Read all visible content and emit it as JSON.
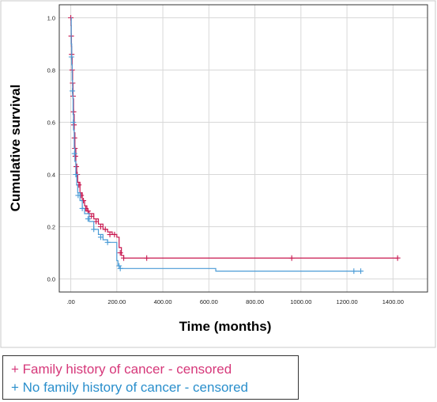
{
  "chart_data": {
    "type": "line",
    "title": "",
    "xlabel": "Time (months)",
    "ylabel": "Cumulative survival",
    "xlim": [
      -50,
      1550
    ],
    "ylim": [
      -0.05,
      1.05
    ],
    "xticks": [
      ".00",
      "200.00",
      "400.00",
      "600.00",
      "800.00",
      "1000.00",
      "1200.00",
      "1400.00"
    ],
    "xtick_values": [
      0,
      200,
      400,
      600,
      800,
      1000,
      1200,
      1400
    ],
    "yticks": [
      "0.0",
      "0.2",
      "0.4",
      "0.6",
      "0.8",
      "1.0"
    ],
    "ytick_values": [
      0,
      0.2,
      0.4,
      0.6,
      0.8,
      1.0
    ],
    "grid": true,
    "legend_position": "bottom-left",
    "series": [
      {
        "name": "Family history of cancer - censored",
        "color": "#c8174f",
        "values": [
          [
            0,
            1.0
          ],
          [
            1,
            0.97
          ],
          [
            2,
            0.93
          ],
          [
            3,
            0.89
          ],
          [
            4,
            0.85
          ],
          [
            6,
            0.8
          ],
          [
            8,
            0.75
          ],
          [
            10,
            0.69
          ],
          [
            12,
            0.63
          ],
          [
            15,
            0.56
          ],
          [
            18,
            0.5
          ],
          [
            22,
            0.44
          ],
          [
            26,
            0.4
          ],
          [
            30,
            0.37
          ],
          [
            40,
            0.33
          ],
          [
            50,
            0.3
          ],
          [
            60,
            0.28
          ],
          [
            70,
            0.26
          ],
          [
            80,
            0.25
          ],
          [
            100,
            0.23
          ],
          [
            120,
            0.21
          ],
          [
            140,
            0.19
          ],
          [
            160,
            0.18
          ],
          [
            180,
            0.17
          ],
          [
            200,
            0.16
          ],
          [
            210,
            0.12
          ],
          [
            220,
            0.09
          ],
          [
            230,
            0.08
          ],
          [
            600,
            0.08
          ],
          [
            1000,
            0.08
          ],
          [
            1420,
            0.08
          ]
        ],
        "censored": [
          [
            0,
            1.0
          ],
          [
            2,
            0.93
          ],
          [
            4,
            0.86
          ],
          [
            6,
            0.8
          ],
          [
            8,
            0.75
          ],
          [
            10,
            0.7
          ],
          [
            12,
            0.64
          ],
          [
            14,
            0.59
          ],
          [
            16,
            0.54
          ],
          [
            18,
            0.5
          ],
          [
            20,
            0.47
          ],
          [
            24,
            0.43
          ],
          [
            28,
            0.4
          ],
          [
            35,
            0.36
          ],
          [
            45,
            0.32
          ],
          [
            55,
            0.3
          ],
          [
            65,
            0.27
          ],
          [
            75,
            0.26
          ],
          [
            90,
            0.24
          ],
          [
            110,
            0.22
          ],
          [
            130,
            0.2
          ],
          [
            150,
            0.19
          ],
          [
            170,
            0.17
          ],
          [
            190,
            0.17
          ],
          [
            215,
            0.1
          ],
          [
            230,
            0.08
          ],
          [
            330,
            0.08
          ],
          [
            960,
            0.08
          ],
          [
            1420,
            0.08
          ]
        ]
      },
      {
        "name": "No family history of cancer - censored",
        "color": "#4a9bd6",
        "values": [
          [
            0,
            1.0
          ],
          [
            2,
            0.9
          ],
          [
            4,
            0.82
          ],
          [
            6,
            0.76
          ],
          [
            8,
            0.7
          ],
          [
            10,
            0.63
          ],
          [
            12,
            0.57
          ],
          [
            15,
            0.5
          ],
          [
            18,
            0.45
          ],
          [
            22,
            0.4
          ],
          [
            26,
            0.36
          ],
          [
            30,
            0.33
          ],
          [
            40,
            0.3
          ],
          [
            50,
            0.27
          ],
          [
            60,
            0.25
          ],
          [
            80,
            0.22
          ],
          [
            100,
            0.19
          ],
          [
            120,
            0.17
          ],
          [
            140,
            0.15
          ],
          [
            160,
            0.14
          ],
          [
            180,
            0.14
          ],
          [
            200,
            0.07
          ],
          [
            205,
            0.05
          ],
          [
            215,
            0.04
          ],
          [
            620,
            0.04
          ],
          [
            630,
            0.03
          ],
          [
            1260,
            0.03
          ]
        ],
        "censored": [
          [
            3,
            0.85
          ],
          [
            7,
            0.72
          ],
          [
            11,
            0.6
          ],
          [
            16,
            0.48
          ],
          [
            22,
            0.4
          ],
          [
            32,
            0.32
          ],
          [
            50,
            0.27
          ],
          [
            75,
            0.23
          ],
          [
            100,
            0.19
          ],
          [
            130,
            0.16
          ],
          [
            160,
            0.14
          ],
          [
            210,
            0.05
          ],
          [
            215,
            0.04
          ],
          [
            1230,
            0.03
          ],
          [
            1260,
            0.03
          ]
        ]
      }
    ]
  },
  "legend": {
    "family": "+ Family history of cancer - censored",
    "no_family": "+ No family history of cancer - censored",
    "family_color": "#d6387a",
    "no_family_color": "#2a8fcc"
  }
}
